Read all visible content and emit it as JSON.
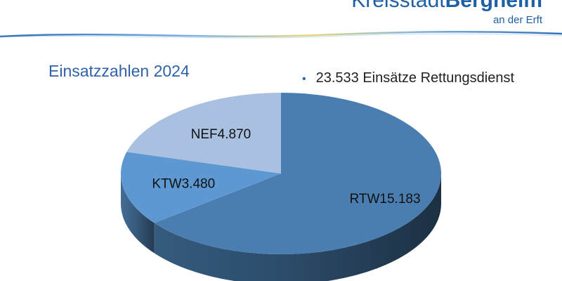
{
  "header": {
    "logo_part1": "Kreisstadt",
    "logo_part2": "Bergheim",
    "logo_sub": "an der Erft"
  },
  "slide": {
    "title": "Einsatzzahlen 2024",
    "bullet": "23.533 Einsätze Rettungsdienst"
  },
  "colors": {
    "rtw": "#4a7eb0",
    "ktw": "#5e98d2",
    "nef": "#a9c0e0",
    "brand": "#1f5fa6"
  },
  "chart_data": {
    "type": "pie",
    "title": "",
    "slices": [
      {
        "label": "RTW",
        "value": 15183,
        "value_label": "15.183"
      },
      {
        "label": "KTW",
        "value": 3480,
        "value_label": "3.480"
      },
      {
        "label": "NEF",
        "value": 4870,
        "value_label": "4.870"
      }
    ],
    "style": "3d"
  }
}
